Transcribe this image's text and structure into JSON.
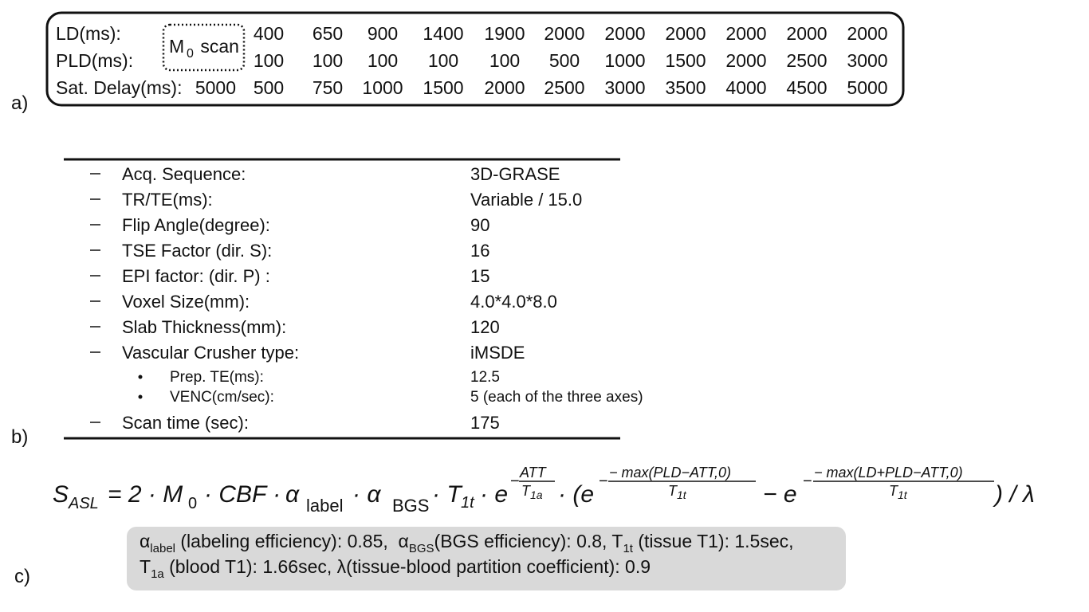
{
  "panel_a": {
    "label": "a)",
    "m0_scan": [
      "M",
      "0",
      " scan"
    ],
    "rows": [
      {
        "name": "LD(ms):",
        "values": [
          400,
          650,
          900,
          1400,
          1900,
          2000,
          2000,
          2000,
          2000,
          2000,
          2000
        ]
      },
      {
        "name": "PLD(ms):",
        "values": [
          100,
          100,
          100,
          100,
          100,
          500,
          1000,
          1500,
          2000,
          2500,
          3000
        ]
      },
      {
        "name": "Sat. Delay(ms):",
        "m0": 5000,
        "values": [
          500,
          750,
          1000,
          1500,
          2000,
          2500,
          3000,
          3500,
          4000,
          4500,
          5000
        ]
      }
    ]
  },
  "panel_b": {
    "label": "b)",
    "items": [
      {
        "name": "Acq. Sequence:",
        "value": "3D-GRASE"
      },
      {
        "name": "TR/TE(ms):",
        "value": "Variable / 15.0"
      },
      {
        "name": "Flip Angle(degree):",
        "value": "90"
      },
      {
        "name": "TSE Factor (dir. S):",
        "value": "16"
      },
      {
        "name": "EPI factor: (dir. P) :",
        "value": "15"
      },
      {
        "name": "Voxel Size(mm):",
        "value": "4.0*4.0*8.0"
      },
      {
        "name": "Slab Thickness(mm):",
        "value": "120"
      },
      {
        "name": "Vascular Crusher type:",
        "value": "iMSDE",
        "children": [
          {
            "name": "Prep. TE(ms):",
            "value": "12.5"
          },
          {
            "name": "VENC(cm/sec):",
            "value": "5 (each of the three axes)"
          }
        ]
      },
      {
        "name": "Scan time (sec):",
        "value": "175"
      }
    ]
  },
  "panel_c": {
    "label": "c)",
    "equation": {
      "s": "S",
      "s_sub": "ASL",
      "eq": "= 2 · M",
      "m_sub": "0",
      "cbf": "· CBF · ",
      "alpha1": "α",
      "label_sub": "label",
      "dot_alpha": "· α",
      "bgs_sub": "BGS",
      "dot_t": "· T",
      "t_sub": "1t",
      "dot_e": "· e",
      "exp1_minus": "−",
      "exp1_num": "ATT",
      "exp1_den": "T",
      "exp1_den_sub": "1a",
      "paren_e": "· (e",
      "exp2_minus": "−",
      "exp2_num": "− max(PLD−ATT,0)",
      "exp2_den": "T",
      "exp2_den_sub": "1t",
      "minus_e": "− e",
      "exp3_minus": "−",
      "exp3_num": "− max(LD+PLD−ATT,0)",
      "exp3_den": "T",
      "exp3_den_sub": "1t",
      "close": ") / λ"
    },
    "note": {
      "line1": [
        "α",
        "label",
        " (labeling efficiency): 0.85,  α",
        "BGS",
        "(BGS efficiency): 0.8, T",
        "1t",
        " (tissue T1): 1.5sec,"
      ],
      "line2": [
        "T",
        "1a",
        " (blood T1): 1.66sec, λ(tissue-blood partition coefficient): 0.9"
      ]
    }
  }
}
